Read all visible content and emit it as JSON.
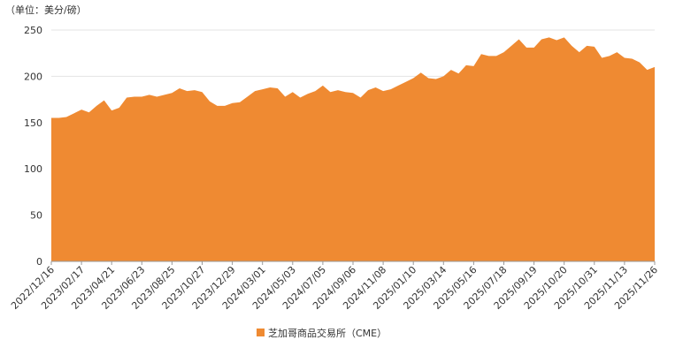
{
  "chart_data": {
    "type": "area",
    "unit_label": "（单位：美分/磅）",
    "categories": [
      "2022/12/16",
      null,
      null,
      null,
      "2023/02/17",
      null,
      null,
      null,
      "2023/04/21",
      null,
      null,
      null,
      "2023/06/23",
      null,
      null,
      null,
      "2023/08/25",
      null,
      null,
      null,
      "2023/10/27",
      null,
      null,
      null,
      "2023/12/29",
      null,
      null,
      null,
      "2024/03/01",
      null,
      null,
      null,
      "2024/05/03",
      null,
      null,
      null,
      "2024/07/05",
      null,
      null,
      null,
      "2024/09/06",
      null,
      null,
      null,
      "2024/11/08",
      null,
      null,
      null,
      "2025/01/10",
      null,
      null,
      null,
      "2025/03/14",
      null,
      null,
      null,
      "2025/05/16",
      null,
      null,
      null,
      "2025/07/18",
      null,
      null,
      null,
      "2025/09/19",
      null,
      null,
      null,
      "2025/10/20",
      null,
      null,
      null,
      "2025/10/31",
      null,
      null,
      null,
      "2025/11/13",
      null,
      null,
      null,
      "2025/11/26"
    ],
    "series": [
      {
        "name": "芝加哥商品交易所（CME）",
        "color": "#ef8a32",
        "values": [
          155,
          155,
          156,
          160,
          164,
          161,
          168,
          174,
          163,
          166,
          177,
          178,
          178,
          180,
          178,
          180,
          182,
          187,
          184,
          185,
          183,
          173,
          168,
          168,
          171,
          172,
          178,
          184,
          186,
          188,
          187,
          178,
          183,
          177,
          181,
          184,
          190,
          183,
          185,
          183,
          182,
          177,
          185,
          188,
          184,
          186,
          190,
          194,
          198,
          204,
          198,
          197,
          200,
          207,
          203,
          212,
          211,
          224,
          222,
          222,
          226,
          233,
          240,
          231,
          231,
          240,
          242,
          239,
          242,
          233,
          226,
          233,
          232,
          220,
          222,
          226,
          220,
          219,
          215,
          207,
          210
        ]
      }
    ],
    "ylim": [
      0,
      250
    ],
    "yticks": [
      0,
      50,
      100,
      150,
      200,
      250
    ],
    "grid": true,
    "legend": "bottom"
  }
}
